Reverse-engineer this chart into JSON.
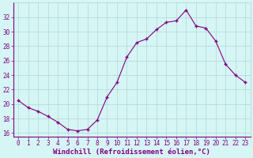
{
  "x": [
    0,
    1,
    2,
    3,
    4,
    5,
    6,
    7,
    8,
    9,
    10,
    11,
    12,
    13,
    14,
    15,
    16,
    17,
    18,
    19,
    20,
    21,
    22,
    23
  ],
  "y": [
    20.5,
    19.5,
    19.0,
    18.3,
    17.5,
    16.5,
    16.3,
    16.5,
    17.8,
    21.0,
    23.0,
    26.5,
    28.5,
    29.0,
    30.3,
    31.3,
    31.5,
    33.0,
    30.8,
    30.5,
    28.7,
    25.5,
    24.0,
    23.0
  ],
  "line_color": "#800080",
  "marker": "P",
  "bg_color": "#d6f5f5",
  "grid_color": "#aed8d8",
  "xlabel": "Windchill (Refroidissement éolien,°C)",
  "xlabel_color": "#800080",
  "tick_color": "#800080",
  "ylim": [
    15.5,
    34
  ],
  "yticks": [
    16,
    18,
    20,
    22,
    24,
    26,
    28,
    30,
    32
  ],
  "xlim": [
    -0.5,
    23.5
  ],
  "xticks": [
    0,
    1,
    2,
    3,
    4,
    5,
    6,
    7,
    8,
    9,
    10,
    11,
    12,
    13,
    14,
    15,
    16,
    17,
    18,
    19,
    20,
    21,
    22,
    23
  ],
  "tick_fontsize": 5.5,
  "xlabel_fontsize": 6.5
}
